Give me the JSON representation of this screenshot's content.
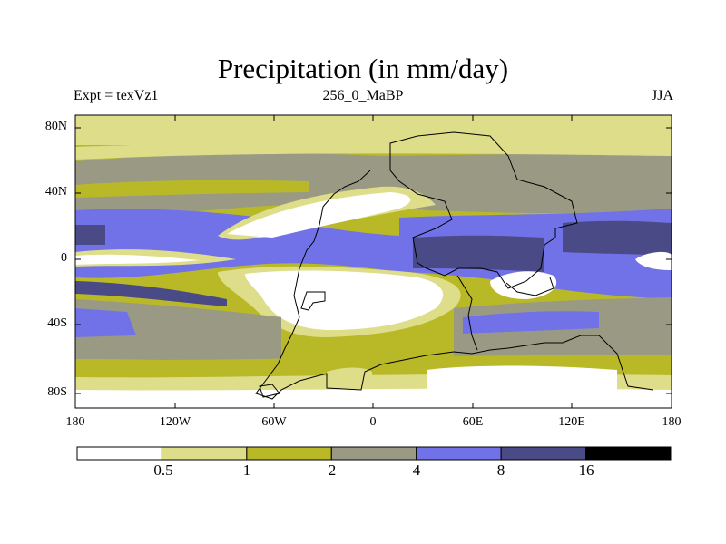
{
  "title": "Precipitation (in mm/day)",
  "subtitle_left": "Expt = texVz1",
  "subtitle_center": "256_0_MaBP",
  "subtitle_right": "JJA",
  "y_ticks": [
    "80N",
    "40N",
    "0",
    "40S",
    "80S"
  ],
  "x_ticks": [
    "180",
    "120W",
    "60W",
    "0",
    "60E",
    "120E",
    "180"
  ],
  "colorbar": {
    "colors": [
      "#ffffff",
      "#dede8a",
      "#b9b928",
      "#9a9a84",
      "#7272e8",
      "#4a4a86",
      "#000000"
    ],
    "labels": [
      "0.5",
      "1",
      "2",
      "4",
      "8",
      "16"
    ]
  },
  "palette": {
    "lt_yellow": "#dede8a",
    "olive": "#b9b928",
    "gray": "#9a9a84",
    "blue": "#7272e8",
    "dk_blue": "#4a4a86"
  }
}
